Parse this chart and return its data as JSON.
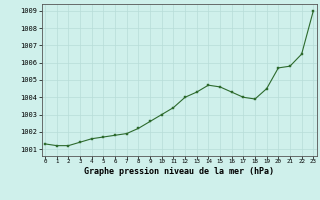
{
  "x": [
    0,
    1,
    2,
    3,
    4,
    5,
    6,
    7,
    8,
    9,
    10,
    11,
    12,
    13,
    14,
    15,
    16,
    17,
    18,
    19,
    20,
    21,
    22,
    23
  ],
  "y": [
    1001.3,
    1001.2,
    1001.2,
    1001.4,
    1001.6,
    1001.7,
    1001.8,
    1001.9,
    1002.2,
    1002.6,
    1003.0,
    1003.4,
    1004.0,
    1004.3,
    1004.7,
    1004.6,
    1004.3,
    1004.0,
    1003.9,
    1004.5,
    1005.7,
    1005.8,
    1006.5,
    1009.0
  ],
  "line_color": "#2d6a2d",
  "marker_color": "#2d6a2d",
  "bg_color": "#cff0eb",
  "grid_color": "#b8ddd8",
  "title": "Graphe pression niveau de la mer (hPa)",
  "xlabel_ticks": [
    "0",
    "1",
    "2",
    "3",
    "4",
    "5",
    "6",
    "7",
    "8",
    "9",
    "10",
    "11",
    "12",
    "13",
    "14",
    "15",
    "16",
    "17",
    "18",
    "19",
    "20",
    "21",
    "22",
    "23"
  ],
  "yticks": [
    1001,
    1002,
    1003,
    1004,
    1005,
    1006,
    1007,
    1008,
    1009
  ],
  "ylim": [
    1000.6,
    1009.4
  ],
  "xlim": [
    -0.3,
    23.3
  ]
}
